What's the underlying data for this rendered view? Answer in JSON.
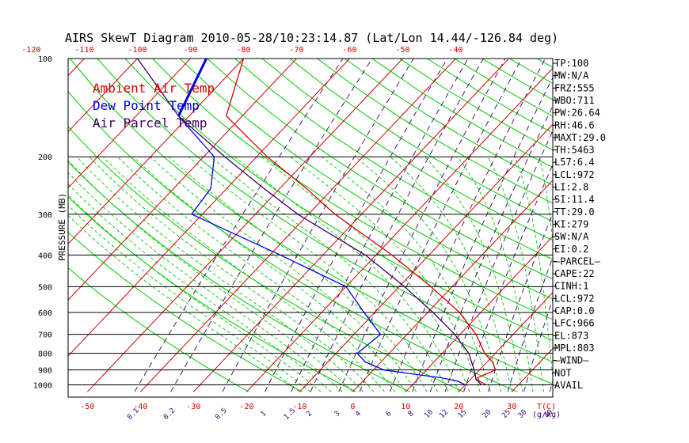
{
  "chart_data": {
    "type": "line",
    "title": "AIRS SkewT Diagram 2010-05-28/10:23:14.87 (Lat/Lon 14.44/-126.84 deg)",
    "ylabel": "PRESSURE (MB)",
    "y_scale": "log",
    "ylim": [
      1050,
      100
    ],
    "pressure_ticks": [
      100,
      200,
      300,
      400,
      500,
      600,
      700,
      800,
      900,
      1000
    ],
    "bottom_temp_ticks": [
      -50,
      -40,
      -30,
      -20,
      -10,
      0,
      10,
      20,
      30
    ],
    "bottom_temp_label": "T(C)",
    "top_temp_ticks": [
      -120,
      -110,
      -100,
      -90,
      -80,
      -70,
      -60,
      -50,
      -40
    ],
    "mixing_ratio_ticks": [
      "0.1",
      "0.2",
      "0.5",
      "1",
      "1.5",
      "2",
      "3",
      "4",
      "6",
      "8",
      "10",
      "12",
      "15",
      "20",
      "25",
      "30",
      "40"
    ],
    "mixing_ratio_label": "(g/kg)",
    "legend": [
      "Ambient Air Temp",
      "Dew Point Temp",
      "Air Parcel Temp"
    ],
    "series": [
      {
        "name": "Ambient Air Temp",
        "color": "#d40000",
        "points": [
          [
            1000,
            24
          ],
          [
            975,
            22
          ],
          [
            950,
            21
          ],
          [
            925,
            22
          ],
          [
            900,
            23
          ],
          [
            850,
            21
          ],
          [
            800,
            18
          ],
          [
            700,
            13
          ],
          [
            600,
            6
          ],
          [
            500,
            -4
          ],
          [
            400,
            -17
          ],
          [
            300,
            -35
          ],
          [
            250,
            -45
          ],
          [
            200,
            -58
          ],
          [
            150,
            -73
          ],
          [
            100,
            -80
          ]
        ]
      },
      {
        "name": "Dew Point Temp",
        "color": "#0000e6",
        "points": [
          [
            1000,
            20
          ],
          [
            975,
            18
          ],
          [
            950,
            14
          ],
          [
            925,
            8
          ],
          [
            900,
            2
          ],
          [
            850,
            -3
          ],
          [
            800,
            -6
          ],
          [
            700,
            -5
          ],
          [
            600,
            -12
          ],
          [
            500,
            -20
          ],
          [
            400,
            -38
          ],
          [
            300,
            -62
          ],
          [
            250,
            -63
          ],
          [
            200,
            -68
          ],
          [
            150,
            -82
          ],
          [
            100,
            -87
          ]
        ]
      },
      {
        "name": "Air Parcel Temp",
        "color": "#3a0066",
        "points": [
          [
            1000,
            23
          ],
          [
            960,
            21
          ],
          [
            900,
            19
          ],
          [
            800,
            15
          ],
          [
            700,
            9
          ],
          [
            600,
            1
          ],
          [
            500,
            -9
          ],
          [
            400,
            -22
          ],
          [
            300,
            -42
          ],
          [
            250,
            -53
          ],
          [
            200,
            -66
          ],
          [
            150,
            -82
          ],
          [
            100,
            -100
          ]
        ]
      }
    ],
    "stats": [
      "TP:100",
      "MW:N/A",
      "FRZ:555",
      "WBO:711",
      "PW:26.64",
      "RH:46.6",
      "MAXT:29.0",
      "TH:5463",
      "L57:6.4",
      "LCL:972",
      "LI:2.8",
      "SI:11.4",
      "TT:29.0",
      "KI:279",
      "SW:N/A",
      "EI:0.2",
      "—PARCEL—",
      "CAPE:22",
      "CINH:1",
      "LCL:972",
      "CAP:0.0",
      "LFC:966",
      "EL:873",
      "MPL:803",
      "—WIND—",
      "NOT",
      "AVAIL"
    ],
    "colors": {
      "isotherm": "#d40000",
      "dry_adiabat": "#00cc00",
      "moist_adiabat": "#00cc00",
      "mixing_ratio": "#3a0066",
      "isobar": "#000000"
    }
  }
}
